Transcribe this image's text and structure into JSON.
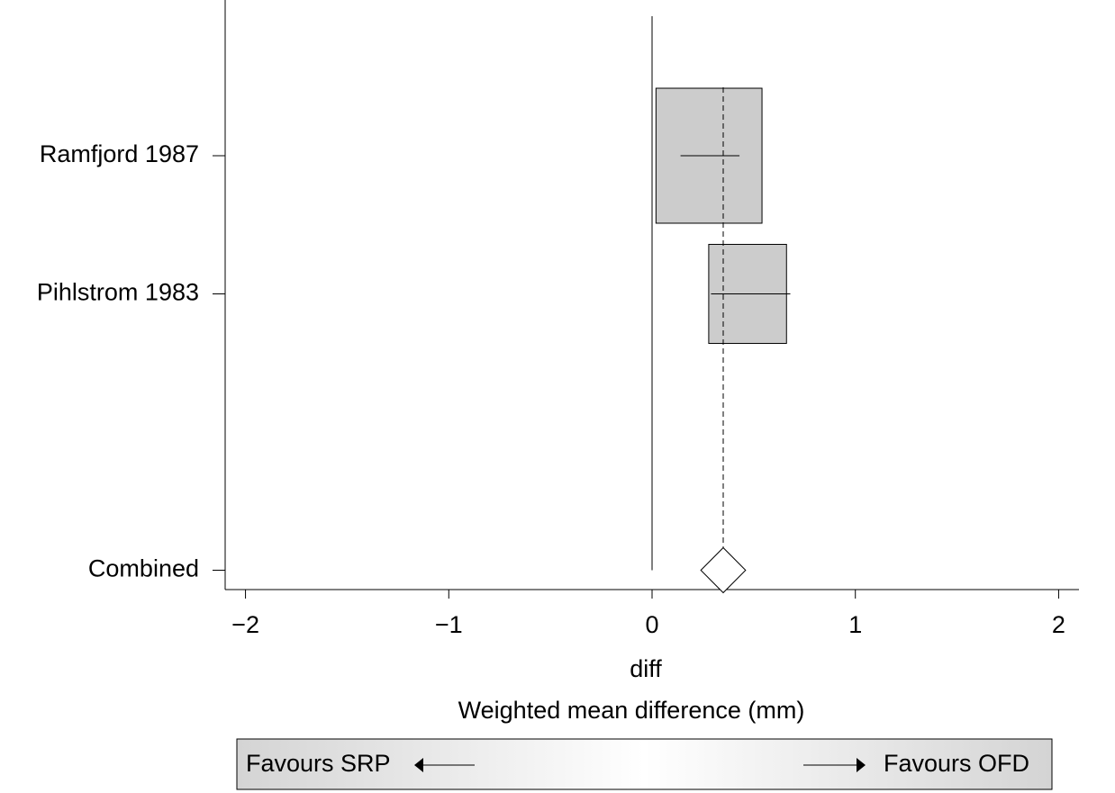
{
  "chart_data": {
    "type": "forest",
    "categories": [
      "Ramfjord 1987",
      "Pihlstrom 1983"
    ],
    "values": [
      0.28,
      0.47
    ],
    "lower": [
      0.14,
      0.29
    ],
    "upper": [
      0.43,
      0.68
    ],
    "weights": [
      65,
      35
    ],
    "combined": {
      "label": "Combined",
      "value": 0.35,
      "lower": 0.24,
      "upper": 0.46
    },
    "ref_line": 0,
    "box_color": "#cccccc",
    "xlim": [
      -2.1,
      2.1
    ],
    "xticks": [
      {
        "value": -2,
        "label": "−2"
      },
      {
        "value": -1,
        "label": "−1"
      },
      0,
      1,
      2
    ],
    "x_label": "diff",
    "x_title": "Weighted mean difference (mm)",
    "favours": {
      "left": "Favours SRP",
      "right": "Favours OFD"
    }
  }
}
